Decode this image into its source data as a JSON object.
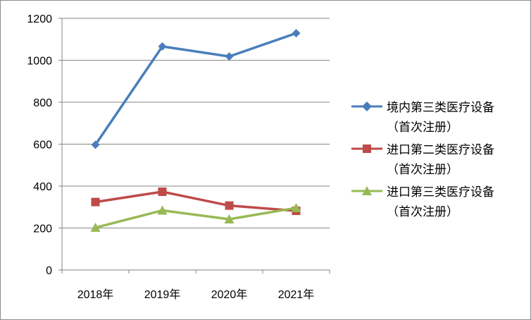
{
  "chart_data": {
    "type": "line",
    "categories": [
      "2018年",
      "2019年",
      "2020年",
      "2021年"
    ],
    "ylim": [
      0,
      1200
    ],
    "yticks": [
      "0",
      "200",
      "400",
      "600",
      "800",
      "1000",
      "1200"
    ],
    "grid": true,
    "legend_position": "right",
    "series": [
      {
        "name": "境内第三类医疗设备（首次注册）",
        "name_line1": "境内第三类医疗设备",
        "name_line2": "（首次注册）",
        "values": [
          597,
          1066,
          1018,
          1129
        ],
        "color": "#4a7ebb",
        "marker": "diamond"
      },
      {
        "name": "进口第二类医疗设备（首次注册）",
        "name_line1": "进口第二类医疗设备",
        "name_line2": "（首次注册）",
        "values": [
          324,
          373,
          307,
          282
        ],
        "color": "#be4b48",
        "marker": "square"
      },
      {
        "name": "进口第三类医疗设备（首次注册）",
        "name_line1": "进口第三类医疗设备",
        "name_line2": "（首次注册）",
        "values": [
          202,
          284,
          242,
          296
        ],
        "color": "#98b954",
        "marker": "triangle"
      }
    ]
  }
}
